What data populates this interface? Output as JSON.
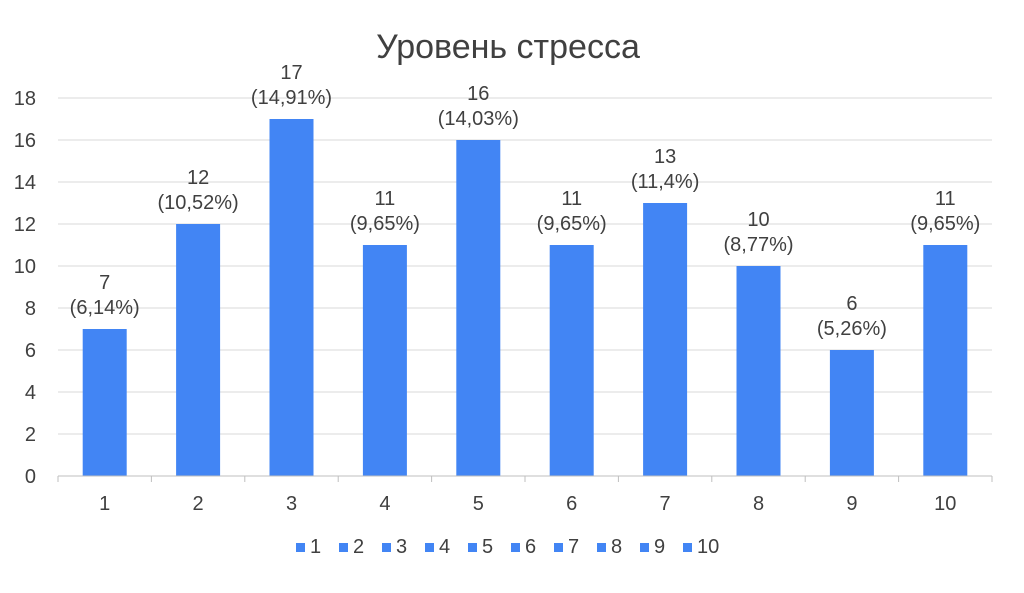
{
  "chart_data": {
    "type": "bar",
    "title": "Уровень стресса",
    "xlabel": "",
    "ylabel": "",
    "categories": [
      "1",
      "2",
      "3",
      "4",
      "5",
      "6",
      "7",
      "8",
      "9",
      "10"
    ],
    "values": [
      7,
      12,
      17,
      11,
      16,
      11,
      13,
      10,
      6,
      11
    ],
    "data_labels": [
      [
        "7",
        "(6,14%)"
      ],
      [
        "12",
        "(10,52%)"
      ],
      [
        "17",
        "(14,91%)"
      ],
      [
        "11",
        "(9,65%)"
      ],
      [
        "16",
        "(14,03%)"
      ],
      [
        "11",
        "(9,65%)"
      ],
      [
        "13",
        "(11,4%)"
      ],
      [
        "10",
        "(8,77%)"
      ],
      [
        "6",
        "(5,26%)"
      ],
      [
        "11",
        "(9,65%)"
      ]
    ],
    "ylim": [
      0,
      18
    ],
    "yticks": [
      "0",
      "2",
      "4",
      "6",
      "8",
      "10",
      "12",
      "14",
      "16",
      "18"
    ],
    "grid": true,
    "legend": {
      "placement": "bottom",
      "entries": [
        "1",
        "2",
        "3",
        "4",
        "5",
        "6",
        "7",
        "8",
        "9",
        "10"
      ]
    },
    "color": "#4285f4"
  }
}
